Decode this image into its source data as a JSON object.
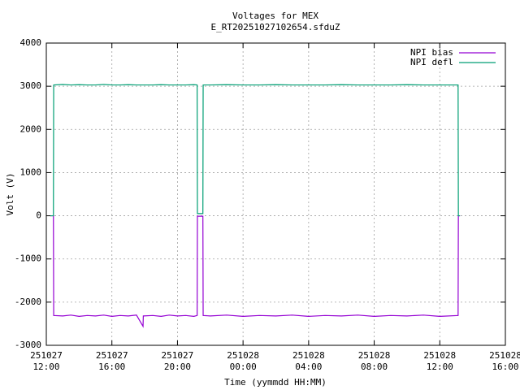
{
  "chart_data": {
    "type": "line",
    "title": "Voltages for MEX",
    "subtitle": "E_RT20251027102654.sfduZ",
    "x_label": "Time (yymmdd HH:MM)",
    "y_label": "Volt (V)",
    "x": [
      "251027 12:15",
      "251027 12:26",
      "251027 12:27",
      "251027 13:00",
      "251027 13:30",
      "251027 14:00",
      "251027 14:30",
      "251027 15:00",
      "251027 15:30",
      "251027 16:00",
      "251027 16:30",
      "251027 17:00",
      "251027 17:30",
      "251027 17:54",
      "251027 17:55",
      "251027 18:30",
      "251027 19:00",
      "251027 19:30",
      "251027 20:00",
      "251027 20:30",
      "251027 21:00",
      "251027 21:12",
      "251027 21:13",
      "251027 21:33",
      "251027 21:34",
      "251027 22:00",
      "251027 23:00",
      "251028 00:00",
      "251028 01:00",
      "251028 02:00",
      "251028 03:00",
      "251028 04:00",
      "251028 05:00",
      "251028 06:00",
      "251028 07:00",
      "251028 08:00",
      "251028 09:00",
      "251028 10:00",
      "251028 11:00",
      "251028 12:00",
      "251028 13:07",
      "251028 13:08",
      "251028 13:14"
    ],
    "series": [
      {
        "name": "NPI bias",
        "color": "#9400d3",
        "values": [
          0,
          0,
          -2310,
          -2320,
          -2300,
          -2330,
          -2310,
          -2320,
          -2300,
          -2330,
          -2310,
          -2320,
          -2300,
          -2560,
          -2320,
          -2310,
          -2330,
          -2300,
          -2320,
          -2310,
          -2330,
          -2310,
          -10,
          -10,
          -2310,
          -2320,
          -2300,
          -2330,
          -2310,
          -2320,
          -2300,
          -2330,
          -2310,
          -2320,
          -2300,
          -2330,
          -2310,
          -2320,
          -2300,
          -2330,
          -2310,
          0,
          0
        ]
      },
      {
        "name": "NPI defl",
        "color": "#009e73",
        "values": [
          0,
          0,
          3030,
          3040,
          3030,
          3035,
          3030,
          3030,
          3040,
          3030,
          3030,
          3035,
          3030,
          3030,
          3030,
          3030,
          3035,
          3030,
          3030,
          3030,
          3035,
          3030,
          50,
          50,
          3030,
          3030,
          3035,
          3030,
          3030,
          3035,
          3030,
          3030,
          3030,
          3035,
          3030,
          3030,
          3030,
          3035,
          3030,
          3030,
          3030,
          0,
          0
        ]
      }
    ],
    "xlim": [
      "251027 12:00",
      "251028 16:00"
    ],
    "xticks": [
      "251027 12:00",
      "251027 16:00",
      "251027 20:00",
      "251028 00:00",
      "251028 04:00",
      "251028 08:00",
      "251028 12:00",
      "251028 16:00"
    ],
    "ylim": [
      -3000,
      4000
    ],
    "yticks": [
      -3000,
      -2000,
      -1000,
      0,
      1000,
      2000,
      3000,
      4000
    ],
    "grid": true,
    "legend": "top right"
  }
}
